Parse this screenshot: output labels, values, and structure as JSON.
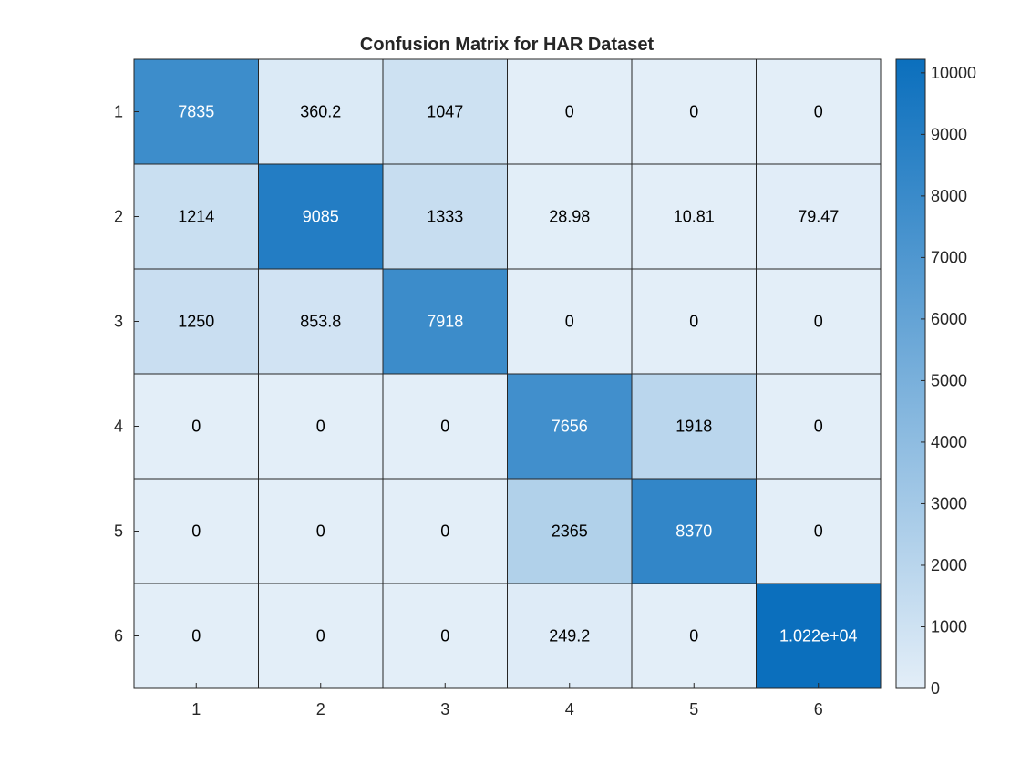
{
  "chart_data": {
    "type": "heatmap",
    "title": "Confusion Matrix for HAR Dataset",
    "xlabel": "",
    "ylabel": "",
    "x_categories": [
      "1",
      "2",
      "3",
      "4",
      "5",
      "6"
    ],
    "y_categories": [
      "1",
      "2",
      "3",
      "4",
      "5",
      "6"
    ],
    "values": [
      [
        7835,
        360.2,
        1047,
        0,
        0,
        0
      ],
      [
        1214,
        9085,
        1333,
        28.98,
        10.81,
        79.47
      ],
      [
        1250,
        853.8,
        7918,
        0,
        0,
        0
      ],
      [
        0,
        0,
        0,
        7656,
        1918,
        0
      ],
      [
        0,
        0,
        0,
        2365,
        8370,
        0
      ],
      [
        0,
        0,
        0,
        249.2,
        0,
        10220
      ]
    ],
    "labels": [
      [
        "7835",
        "360.2",
        "1047",
        "0",
        "0",
        "0"
      ],
      [
        "1214",
        "9085",
        "1333",
        "28.98",
        "10.81",
        "79.47"
      ],
      [
        "1250",
        "853.8",
        "7918",
        "0",
        "0",
        "0"
      ],
      [
        "0",
        "0",
        "0",
        "7656",
        "1918",
        "0"
      ],
      [
        "0",
        "0",
        "0",
        "2365",
        "8370",
        "0"
      ],
      [
        "0",
        "0",
        "0",
        "249.2",
        "0",
        "1.022e+04"
      ]
    ],
    "colorbar": {
      "min": 0,
      "max": 10220,
      "ticks": [
        "0",
        "1000",
        "2000",
        "3000",
        "4000",
        "5000",
        "6000",
        "7000",
        "8000",
        "9000",
        "10000"
      ],
      "color_low": "#e3eef8",
      "color_high": "#0b6fbd"
    }
  }
}
